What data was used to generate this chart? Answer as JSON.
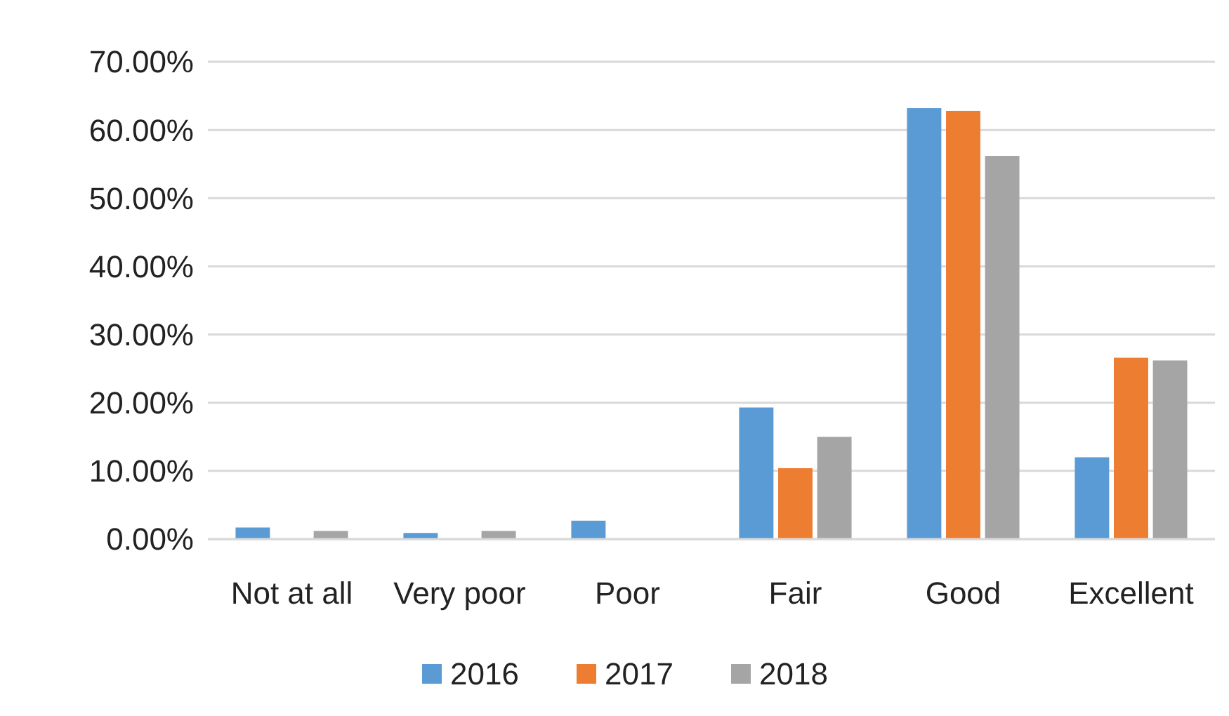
{
  "chart_data": {
    "type": "bar",
    "categories": [
      "Not at all",
      "Very poor",
      "Poor",
      "Fair",
      "Good",
      "Excellent"
    ],
    "series": [
      {
        "name": "2016",
        "color": "#5b9bd5",
        "values": [
          1.7,
          0.9,
          2.7,
          19.3,
          63.2,
          12.0
        ]
      },
      {
        "name": "2017",
        "color": "#ed7d31",
        "values": [
          0,
          0,
          0,
          10.4,
          62.8,
          26.6
        ]
      },
      {
        "name": "2018",
        "color": "#a5a5a5",
        "values": [
          1.2,
          1.2,
          0,
          15.0,
          56.2,
          26.2
        ]
      }
    ],
    "ylim": [
      0,
      70
    ],
    "yticks": [
      {
        "value": 0,
        "label": "0.00%"
      },
      {
        "value": 10,
        "label": "10.00%"
      },
      {
        "value": 20,
        "label": "20.00%"
      },
      {
        "value": 30,
        "label": "30.00%"
      },
      {
        "value": 40,
        "label": "40.00%"
      },
      {
        "value": 50,
        "label": "50.00%"
      },
      {
        "value": 60,
        "label": "60.00%"
      },
      {
        "value": 70,
        "label": "70.00%"
      }
    ],
    "grid": "y",
    "legend": "bottom"
  }
}
